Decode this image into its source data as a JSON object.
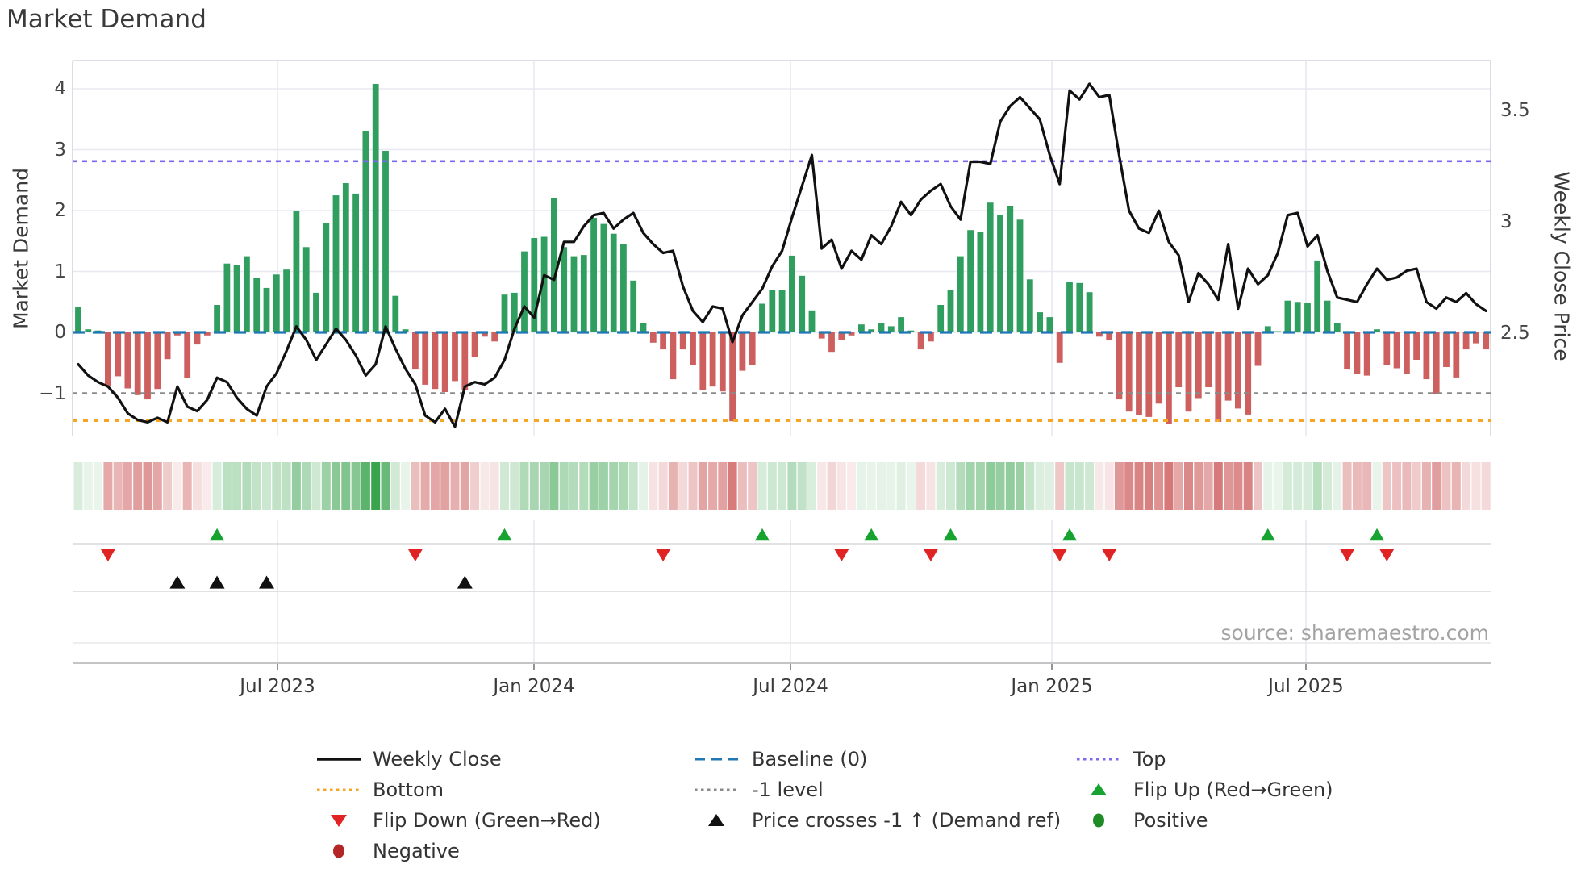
{
  "title": "Market Demand",
  "source": "source: sharemaestro.com",
  "axes": {
    "left_label": "Market Demand",
    "right_label": "Weekly Close Price",
    "left_ticks": [
      {
        "label": "4",
        "value": 4
      },
      {
        "label": "3",
        "value": 3
      },
      {
        "label": "2",
        "value": 2
      },
      {
        "label": "1",
        "value": 1
      },
      {
        "label": "0",
        "value": 0
      },
      {
        "label": "−1",
        "value": -1
      }
    ],
    "right_ticks": [
      {
        "label": "3.5",
        "value": 3.5
      },
      {
        "label": "3",
        "value": 3.0
      },
      {
        "label": "2.5",
        "value": 2.5
      }
    ],
    "x_ticks": [
      {
        "label": "Jul 2023",
        "week": 20.1
      },
      {
        "label": "Jan 2024",
        "week": 45.97
      },
      {
        "label": "Jul 2024",
        "week": 71.85
      },
      {
        "label": "Jan 2025",
        "week": 98.21
      },
      {
        "label": "Jul 2025",
        "week": 123.84
      }
    ]
  },
  "chart_data": {
    "type": "bar",
    "subtype": "weekly bar + line combo with heatmap strip and event markers",
    "x_unit": "weeks (Feb 2023 - Nov 2025)",
    "n_weeks": 143,
    "grid": true,
    "legend_position": "below chart",
    "ylim_left": [
      -1.71,
      4.46
    ],
    "ylim_right": [
      2.04,
      3.72
    ],
    "reference_lines": {
      "baseline": 0,
      "top": 2.81,
      "minus_one": -1,
      "bottom": -1.45
    },
    "series": [
      {
        "name": "Market Demand",
        "type": "bar",
        "axis": "left",
        "values": [
          0.42,
          0.05,
          0.03,
          -0.88,
          -0.72,
          -0.92,
          -1.03,
          -1.1,
          -0.93,
          -0.44,
          -0.05,
          -0.75,
          -0.2,
          -0.05,
          0.45,
          1.13,
          1.1,
          1.25,
          0.9,
          0.73,
          0.95,
          1.03,
          2.0,
          1.4,
          0.65,
          1.8,
          2.25,
          2.45,
          2.28,
          3.3,
          4.08,
          2.98,
          0.6,
          0.05,
          -0.61,
          -0.86,
          -0.93,
          -0.98,
          -0.8,
          -0.95,
          -0.41,
          -0.07,
          -0.15,
          0.62,
          0.65,
          1.33,
          1.55,
          1.57,
          2.2,
          1.4,
          1.25,
          1.27,
          1.88,
          1.78,
          1.62,
          1.45,
          0.85,
          0.15,
          -0.17,
          -0.28,
          -0.77,
          -0.28,
          -0.53,
          -0.94,
          -0.89,
          -0.97,
          -1.46,
          -0.63,
          -0.53,
          0.47,
          0.7,
          0.7,
          1.26,
          0.93,
          0.36,
          -0.1,
          -0.32,
          -0.12,
          -0.05,
          0.13,
          0.05,
          0.15,
          0.1,
          0.25,
          0.03,
          -0.28,
          -0.15,
          0.45,
          0.7,
          1.25,
          1.68,
          1.65,
          2.13,
          1.93,
          2.08,
          1.85,
          0.87,
          0.33,
          0.25,
          -0.5,
          0.83,
          0.81,
          0.66,
          -0.07,
          -0.12,
          -1.1,
          -1.3,
          -1.36,
          -1.39,
          -1.17,
          -1.5,
          -0.9,
          -1.3,
          -1.08,
          -0.9,
          -1.47,
          -1.12,
          -1.25,
          -1.35,
          -0.55,
          0.1,
          0.02,
          0.52,
          0.5,
          0.48,
          1.18,
          0.52,
          0.15,
          -0.61,
          -0.68,
          -0.71,
          0.05,
          -0.53,
          -0.59,
          -0.68,
          -0.45,
          -0.77,
          -1.02,
          -0.57,
          -0.74,
          -0.28,
          -0.18,
          -0.28
        ]
      },
      {
        "name": "Weekly Close",
        "type": "line",
        "axis": "right",
        "values": [
          2.36,
          2.31,
          2.28,
          2.26,
          2.21,
          2.14,
          2.11,
          2.1,
          2.12,
          2.1,
          2.26,
          2.17,
          2.15,
          2.2,
          2.3,
          2.28,
          2.21,
          2.16,
          2.13,
          2.26,
          2.32,
          2.42,
          2.53,
          2.47,
          2.38,
          2.45,
          2.52,
          2.47,
          2.4,
          2.31,
          2.36,
          2.53,
          2.43,
          2.34,
          2.27,
          2.13,
          2.1,
          2.16,
          2.08,
          2.26,
          2.28,
          2.27,
          2.3,
          2.38,
          2.52,
          2.62,
          2.57,
          2.76,
          2.74,
          2.91,
          2.91,
          2.98,
          3.03,
          3.04,
          2.97,
          3.01,
          3.04,
          2.95,
          2.9,
          2.86,
          2.87,
          2.71,
          2.6,
          2.55,
          2.62,
          2.61,
          2.46,
          2.58,
          2.64,
          2.7,
          2.8,
          2.87,
          3.02,
          3.16,
          3.3,
          2.88,
          2.92,
          2.79,
          2.87,
          2.83,
          2.94,
          2.9,
          2.98,
          3.09,
          3.03,
          3.1,
          3.14,
          3.17,
          3.07,
          3.01,
          3.27,
          3.27,
          3.26,
          3.45,
          3.52,
          3.56,
          3.51,
          3.46,
          3.3,
          3.17,
          3.59,
          3.55,
          3.62,
          3.56,
          3.57,
          3.3,
          3.05,
          2.97,
          2.95,
          3.05,
          2.91,
          2.85,
          2.64,
          2.77,
          2.72,
          2.65,
          2.9,
          2.61,
          2.79,
          2.72,
          2.76,
          2.86,
          3.03,
          3.04,
          2.89,
          2.94,
          2.78,
          2.66,
          2.65,
          2.64,
          2.72,
          2.79,
          2.74,
          2.75,
          2.78,
          2.79,
          2.64,
          2.61,
          2.66,
          2.64,
          2.68,
          2.63,
          2.6
        ]
      }
    ],
    "markers": {
      "flip_up_weeks": [
        14,
        43,
        69,
        80,
        88,
        100,
        120,
        131
      ],
      "flip_down_weeks": [
        3,
        34,
        59,
        77,
        86,
        99,
        104,
        128,
        132
      ],
      "price_cross_minus1_weeks": [
        10,
        14,
        19,
        39
      ]
    },
    "heatmap": {
      "description": "color strip derived from Market Demand bar values",
      "positive_scale": "white to green (max at +4.1)",
      "negative_scale": "white to red (max at -1.55)"
    }
  },
  "colors": {
    "bar_positive": "#2f9e5f",
    "bar_negative": "#cd5f5f",
    "price_line": "#111111",
    "baseline": "#1f77b4",
    "top": "#7b68ee",
    "bottom": "#f5a623",
    "minus_one": "#8a8a8a",
    "flip_up": "#16a32f",
    "flip_down": "#e02424",
    "price_cross": "#111111",
    "positive_dot": "#1f8b24",
    "negative_dot": "#b42525",
    "grid": "#e8e8f2",
    "spine": "#d3d3de"
  },
  "legend": {
    "items": [
      {
        "row": 0,
        "col": 0,
        "swatch": "line-solid",
        "color": "price_line",
        "label": "Weekly Close"
      },
      {
        "row": 0,
        "col": 1,
        "swatch": "line-dashed",
        "color": "baseline",
        "label": "Baseline (0)"
      },
      {
        "row": 0,
        "col": 2,
        "swatch": "line-dotted",
        "color": "top",
        "label": "Top"
      },
      {
        "row": 1,
        "col": 0,
        "swatch": "line-dotted",
        "color": "bottom",
        "label": "Bottom"
      },
      {
        "row": 1,
        "col": 1,
        "swatch": "line-dotted",
        "color": "minus_one",
        "label": "-1 level"
      },
      {
        "row": 1,
        "col": 2,
        "swatch": "triangle-up",
        "color": "flip_up",
        "label": "Flip Up (Red→Green)"
      },
      {
        "row": 2,
        "col": 0,
        "swatch": "triangle-down",
        "color": "flip_down",
        "label": "Flip Down (Green→Red)"
      },
      {
        "row": 2,
        "col": 1,
        "swatch": "triangle-up",
        "color": "price_cross",
        "label": "Price crosses -1 ↑ (Demand ref)"
      },
      {
        "row": 2,
        "col": 2,
        "swatch": "circle",
        "color": "positive_dot",
        "label": "Positive"
      },
      {
        "row": 3,
        "col": 0,
        "swatch": "circle",
        "color": "negative_dot",
        "label": "Negative"
      }
    ]
  }
}
